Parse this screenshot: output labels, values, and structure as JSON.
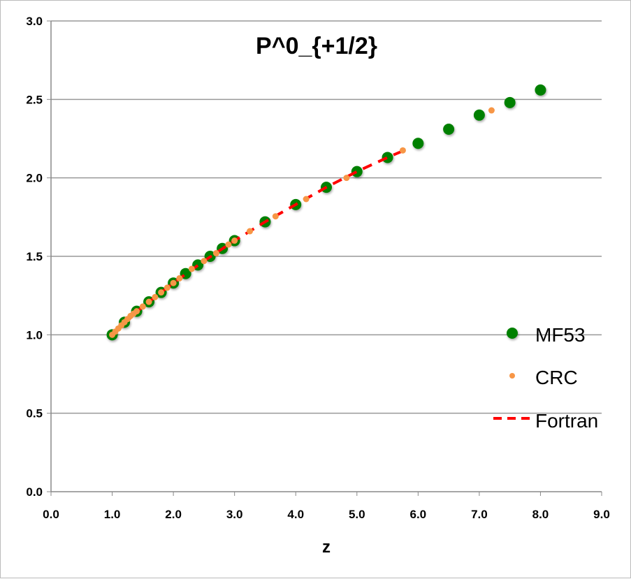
{
  "chart_data": {
    "type": "scatter",
    "title": "P^0_{+1/2}",
    "xlabel": "z",
    "ylabel": "",
    "xlim": [
      0,
      9
    ],
    "ylim": [
      0,
      3
    ],
    "xticks": [
      "0.0",
      "1.0",
      "2.0",
      "3.0",
      "4.0",
      "5.0",
      "6.0",
      "7.0",
      "8.0",
      "9.0"
    ],
    "yticks": [
      "0.0",
      "0.5",
      "1.0",
      "1.5",
      "2.0",
      "2.5",
      "3.0"
    ],
    "grid": "horizontal",
    "legend_placement": "right",
    "series": [
      {
        "name": "MF53",
        "style": "large-marker",
        "color": "#008000",
        "x": [
          1.0,
          1.2,
          1.4,
          1.6,
          1.8,
          2.0,
          2.2,
          2.4,
          2.6,
          2.8,
          3.0,
          3.5,
          4.0,
          4.5,
          5.0,
          5.5,
          6.0,
          6.5,
          7.0,
          7.5,
          8.0
        ],
        "y": [
          1.0,
          1.08,
          1.15,
          1.21,
          1.27,
          1.33,
          1.39,
          1.445,
          1.5,
          1.55,
          1.6,
          1.72,
          1.83,
          1.94,
          2.04,
          2.13,
          2.22,
          2.31,
          2.4,
          2.48,
          2.56
        ]
      },
      {
        "name": "CRC",
        "style": "small-marker",
        "color": "#F79646",
        "x": [
          1.0,
          1.05,
          1.1,
          1.15,
          1.2,
          1.25,
          1.3,
          1.35,
          1.4,
          1.5,
          1.6,
          1.7,
          1.8,
          1.9,
          2.0,
          2.1,
          2.3,
          2.5,
          2.7,
          2.9,
          3.0,
          3.25,
          3.67,
          4.17,
          4.83,
          5.75,
          7.2
        ],
        "y": [
          1.0,
          1.02,
          1.04,
          1.06,
          1.08,
          1.1,
          1.12,
          1.135,
          1.15,
          1.18,
          1.21,
          1.24,
          1.27,
          1.3,
          1.33,
          1.36,
          1.42,
          1.47,
          1.52,
          1.575,
          1.6,
          1.66,
          1.755,
          1.865,
          2.0,
          2.175,
          2.43
        ]
      },
      {
        "name": "Fortran",
        "style": "dashed-line",
        "color": "#FF0000",
        "x": [
          1.0,
          1.5,
          2.0,
          2.5,
          3.0,
          3.5,
          4.0,
          4.5,
          5.0,
          5.5,
          5.8
        ],
        "y": [
          1.0,
          1.18,
          1.33,
          1.47,
          1.6,
          1.72,
          1.83,
          1.94,
          2.04,
          2.13,
          2.18
        ]
      }
    ]
  }
}
